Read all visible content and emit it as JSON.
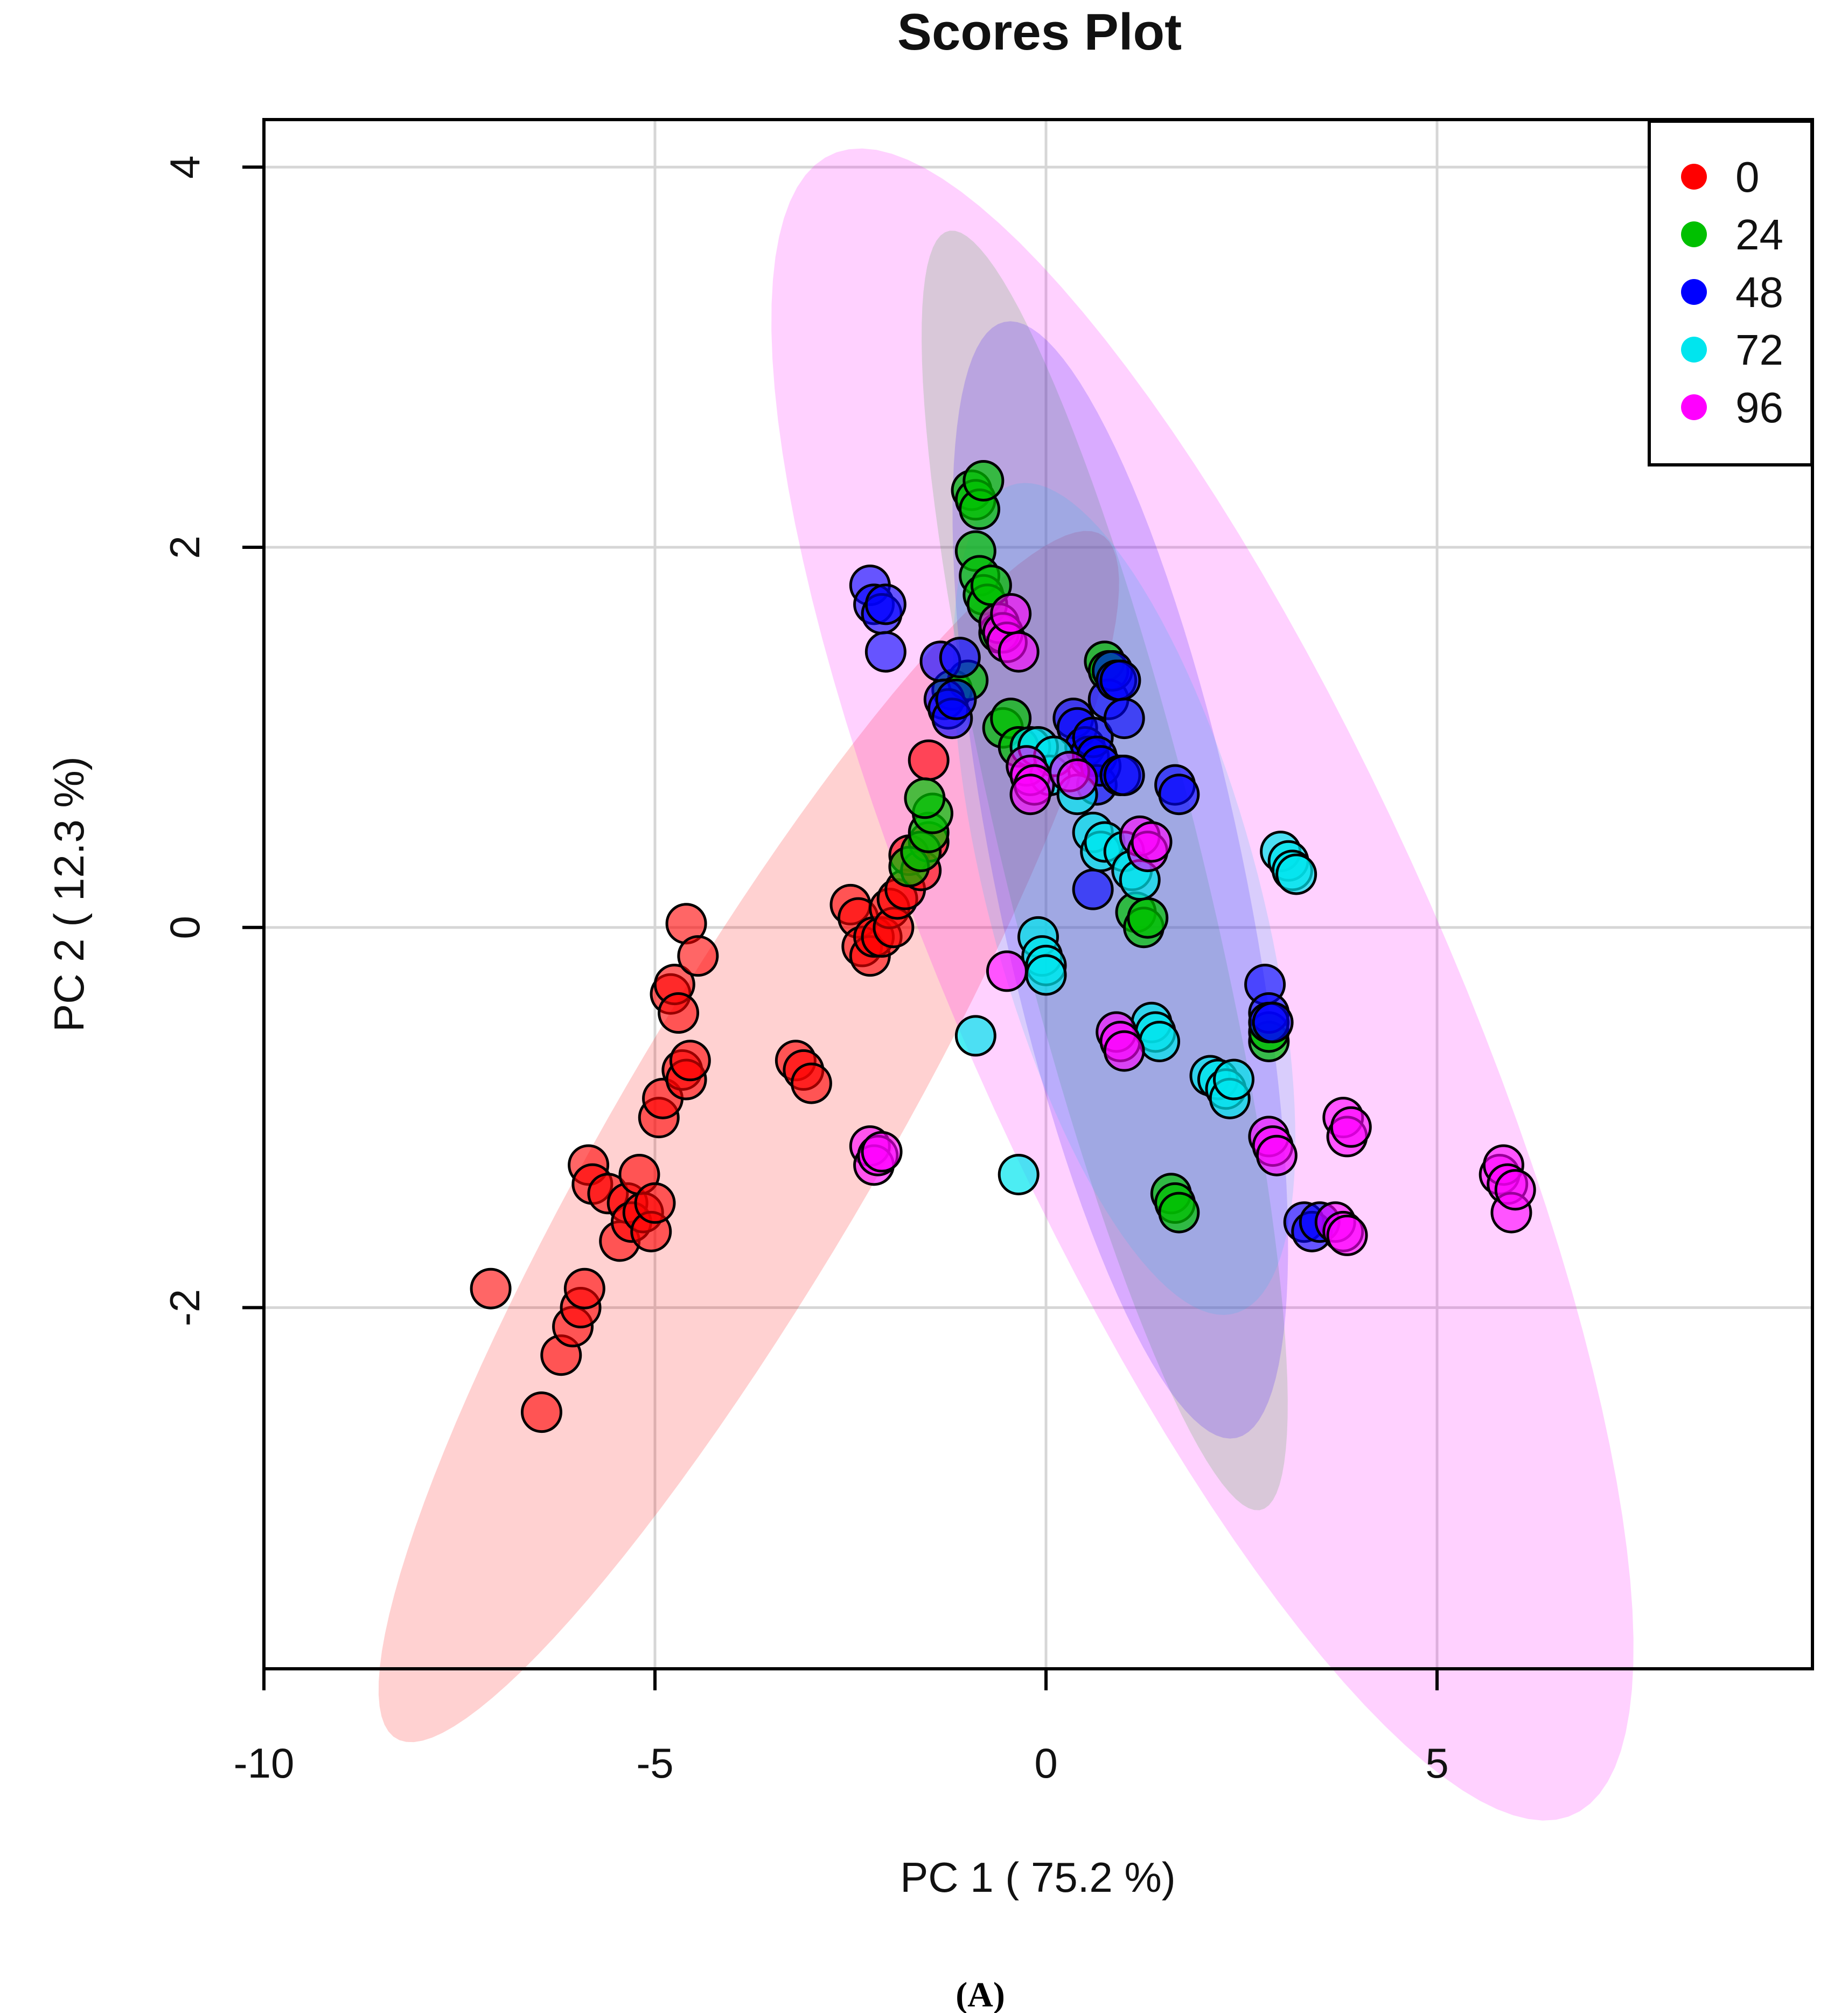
{
  "chart_data": {
    "type": "scatter",
    "title": "Scores Plot",
    "xlabel": "PC 1 ( 75.2 %)",
    "ylabel": "PC 2 ( 12.3 %)",
    "xlim": [
      -10,
      9.8
    ],
    "ylim": [
      -3.9,
      4.25
    ],
    "x_ticks": [
      -10,
      -5,
      0,
      5
    ],
    "x_tick_labels": [
      "-10",
      "-5",
      "0",
      "5"
    ],
    "y_ticks": [
      -2,
      0,
      2,
      4
    ],
    "y_tick_labels": [
      "-2",
      "0",
      "2",
      "4"
    ],
    "grid": true,
    "legend_position": "top-right",
    "caption": "(A)",
    "ellipses": [
      {
        "group": "0",
        "center": [
          -3.8,
          -1.1
        ],
        "semi_axes": [
          5.6,
          1.1
        ],
        "angle_deg": 33
      },
      {
        "group": "24",
        "center": [
          0.75,
          0.3
        ],
        "semi_axes": [
          3.95,
          1.1
        ],
        "angle_deg": -57
      },
      {
        "group": "48",
        "center": [
          0.95,
          0.25
        ],
        "semi_axes": [
          3.35,
          1.42
        ],
        "angle_deg": -58
      },
      {
        "group": "72",
        "center": [
          1.0,
          0.15
        ],
        "semi_axes": [
          2.75,
          1.42
        ],
        "angle_deg": -45
      },
      {
        "group": "96",
        "center": [
          2.0,
          -0.3
        ],
        "semi_axes": [
          6.7,
          2.2
        ],
        "angle_deg": -37
      }
    ],
    "series": [
      {
        "name": "0",
        "color": "#ff0000",
        "fill_opacity": 0.6,
        "points": [
          [
            -7.1,
            -1.9
          ],
          [
            -6.45,
            -2.55
          ],
          [
            -6.2,
            -2.25
          ],
          [
            -6.05,
            -2.1
          ],
          [
            -5.95,
            -2.0
          ],
          [
            -5.9,
            -1.9
          ],
          [
            -5.85,
            -1.25
          ],
          [
            -5.8,
            -1.35
          ],
          [
            -5.6,
            -1.4
          ],
          [
            -5.45,
            -1.65
          ],
          [
            -5.35,
            -1.45
          ],
          [
            -5.3,
            -1.55
          ],
          [
            -5.2,
            -1.3
          ],
          [
            -5.15,
            -1.5
          ],
          [
            -5.05,
            -1.6
          ],
          [
            -5.0,
            -1.45
          ],
          [
            -4.95,
            -1.0
          ],
          [
            -4.9,
            -0.9
          ],
          [
            -4.8,
            -0.35
          ],
          [
            -4.75,
            -0.3
          ],
          [
            -4.7,
            -0.45
          ],
          [
            -4.65,
            -0.75
          ],
          [
            -4.6,
            -0.8
          ],
          [
            -4.6,
            0.02
          ],
          [
            -4.55,
            -0.7
          ],
          [
            -4.45,
            -0.15
          ],
          [
            -3.2,
            -0.7
          ],
          [
            -3.1,
            -0.75
          ],
          [
            -3.0,
            -0.82
          ],
          [
            -2.5,
            0.12
          ],
          [
            -2.4,
            0.05
          ],
          [
            -2.35,
            -0.1
          ],
          [
            -2.25,
            -0.15
          ],
          [
            -2.2,
            -0.05
          ],
          [
            -2.1,
            -0.05
          ],
          [
            -2.0,
            0.1
          ],
          [
            -1.95,
            0.0
          ],
          [
            -1.9,
            0.15
          ],
          [
            -1.8,
            0.2
          ],
          [
            -1.75,
            0.38
          ],
          [
            -1.6,
            0.3
          ],
          [
            -1.5,
            0.45
          ],
          [
            -1.5,
            0.88
          ]
        ]
      },
      {
        "name": "24",
        "color": "#00c000",
        "fill_opacity": 0.7,
        "points": [
          [
            -1.75,
            0.32
          ],
          [
            -1.6,
            0.4
          ],
          [
            -1.5,
            0.5
          ],
          [
            -1.45,
            0.6
          ],
          [
            -1.55,
            0.68
          ],
          [
            -1.2,
            1.25
          ],
          [
            -1.0,
            1.3
          ],
          [
            -0.95,
            2.3
          ],
          [
            -0.9,
            2.25
          ],
          [
            -0.85,
            2.2
          ],
          [
            -0.8,
            2.35
          ],
          [
            -0.9,
            1.98
          ],
          [
            -0.85,
            1.85
          ],
          [
            -0.8,
            1.75
          ],
          [
            -0.75,
            1.7
          ],
          [
            -0.7,
            1.8
          ],
          [
            -0.6,
            1.55
          ],
          [
            -0.55,
            1.05
          ],
          [
            -0.45,
            1.1
          ],
          [
            -0.35,
            0.95
          ],
          [
            0.75,
            1.4
          ],
          [
            0.8,
            1.35
          ],
          [
            1.15,
            0.08
          ],
          [
            1.25,
            0.0
          ],
          [
            1.3,
            0.05
          ],
          [
            1.6,
            -1.4
          ],
          [
            1.65,
            -1.45
          ],
          [
            1.7,
            -1.5
          ],
          [
            2.85,
            -0.6
          ],
          [
            2.85,
            -0.55
          ]
        ]
      },
      {
        "name": "48",
        "color": "#0000ff",
        "fill_opacity": 0.6,
        "points": [
          [
            -2.25,
            1.8
          ],
          [
            -2.2,
            1.7
          ],
          [
            -2.1,
            1.65
          ],
          [
            -2.05,
            1.7
          ],
          [
            -2.05,
            1.45
          ],
          [
            -1.35,
            1.4
          ],
          [
            -1.3,
            1.2
          ],
          [
            -1.25,
            1.15
          ],
          [
            -1.2,
            1.1
          ],
          [
            -1.15,
            1.2
          ],
          [
            -1.1,
            1.42
          ],
          [
            0.35,
            1.1
          ],
          [
            0.4,
            1.05
          ],
          [
            0.5,
            0.95
          ],
          [
            0.55,
            0.9
          ],
          [
            0.6,
            1.0
          ],
          [
            0.6,
            0.2
          ],
          [
            0.65,
            0.9
          ],
          [
            0.65,
            0.75
          ],
          [
            0.7,
            0.85
          ],
          [
            0.8,
            1.2
          ],
          [
            0.85,
            1.35
          ],
          [
            0.9,
            1.3
          ],
          [
            0.95,
            0.8
          ],
          [
            0.95,
            1.3
          ],
          [
            1.0,
            0.8
          ],
          [
            1.0,
            1.1
          ],
          [
            1.65,
            0.75
          ],
          [
            1.7,
            0.7
          ],
          [
            2.8,
            -0.3
          ],
          [
            2.85,
            -0.45
          ],
          [
            2.85,
            -0.5
          ],
          [
            2.9,
            -0.5
          ],
          [
            3.3,
            -1.55
          ],
          [
            3.4,
            -1.6
          ],
          [
            3.5,
            -1.55
          ]
        ]
      },
      {
        "name": "72",
        "color": "#00e5ee",
        "fill_opacity": 0.7,
        "points": [
          [
            -0.9,
            -0.57
          ],
          [
            -0.35,
            -1.3
          ],
          [
            -0.1,
            -0.05
          ],
          [
            -0.05,
            -0.15
          ],
          [
            0.0,
            -0.2
          ],
          [
            0.0,
            -0.25
          ],
          [
            -0.2,
            0.95
          ],
          [
            -0.1,
            0.95
          ],
          [
            0.05,
            0.8
          ],
          [
            0.1,
            0.9
          ],
          [
            0.4,
            0.7
          ],
          [
            0.6,
            0.5
          ],
          [
            0.7,
            0.4
          ],
          [
            0.75,
            0.45
          ],
          [
            1.0,
            0.4
          ],
          [
            1.1,
            0.3
          ],
          [
            1.2,
            0.25
          ],
          [
            1.35,
            -0.5
          ],
          [
            1.4,
            -0.55
          ],
          [
            1.45,
            -0.6
          ],
          [
            2.1,
            -0.78
          ],
          [
            2.2,
            -0.8
          ],
          [
            2.3,
            -0.85
          ],
          [
            2.35,
            -0.9
          ],
          [
            2.4,
            -0.8
          ],
          [
            3.0,
            0.4
          ],
          [
            3.1,
            0.35
          ],
          [
            3.15,
            0.3
          ],
          [
            3.2,
            0.28
          ]
        ]
      },
      {
        "name": "96",
        "color": "#ff00ff",
        "fill_opacity": 0.6,
        "points": [
          [
            -2.25,
            -1.15
          ],
          [
            -2.2,
            -1.25
          ],
          [
            -2.15,
            -1.2
          ],
          [
            -2.1,
            -1.18
          ],
          [
            -0.5,
            -0.23
          ],
          [
            -0.6,
            1.6
          ],
          [
            -0.55,
            1.55
          ],
          [
            -0.5,
            1.5
          ],
          [
            -0.45,
            1.65
          ],
          [
            -0.35,
            1.45
          ],
          [
            -0.25,
            0.85
          ],
          [
            -0.2,
            0.8
          ],
          [
            -0.15,
            0.75
          ],
          [
            -0.2,
            0.7
          ],
          [
            0.3,
            0.82
          ],
          [
            0.4,
            0.78
          ],
          [
            0.9,
            -0.55
          ],
          [
            0.95,
            -0.6
          ],
          [
            1.0,
            -0.65
          ],
          [
            1.2,
            0.48
          ],
          [
            1.3,
            0.4
          ],
          [
            1.35,
            0.45
          ],
          [
            2.85,
            -1.1
          ],
          [
            2.9,
            -1.15
          ],
          [
            2.95,
            -1.2
          ],
          [
            3.8,
            -1.0
          ],
          [
            3.85,
            -1.1
          ],
          [
            3.9,
            -1.05
          ],
          [
            3.7,
            -1.55
          ],
          [
            3.8,
            -1.6
          ],
          [
            3.85,
            -1.62
          ],
          [
            5.8,
            -1.3
          ],
          [
            5.85,
            -1.25
          ],
          [
            5.9,
            -1.35
          ],
          [
            5.95,
            -1.5
          ],
          [
            6.0,
            -1.38
          ]
        ]
      }
    ]
  }
}
